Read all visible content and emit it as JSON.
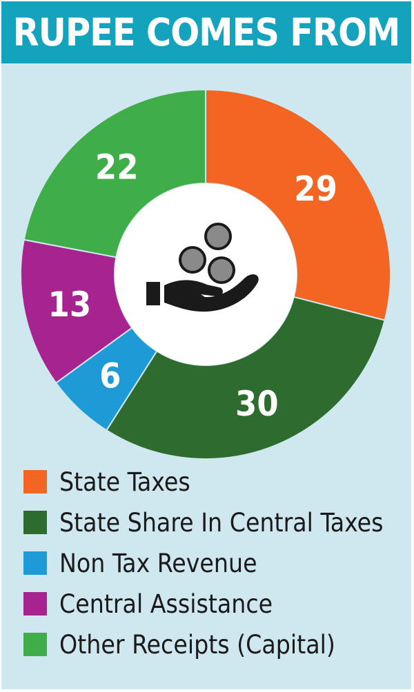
{
  "header": {
    "title": "RUPEE COMES FROM"
  },
  "chart_data": {
    "type": "pie",
    "title": "RUPEE COMES FROM",
    "categories": [
      "State Taxes",
      "State Share In Central Taxes",
      "Non Tax Revenue",
      "Central Assistance",
      "Other Receipts (Capital)"
    ],
    "values": [
      29,
      30,
      6,
      13,
      22
    ],
    "colors": [
      "#f26522",
      "#2e6b2f",
      "#1e9ad6",
      "#a7238f",
      "#3fae49"
    ],
    "value_label_color": "#ffffff",
    "center_icon": "hand-coins-icon",
    "legend_position": "bottom"
  }
}
